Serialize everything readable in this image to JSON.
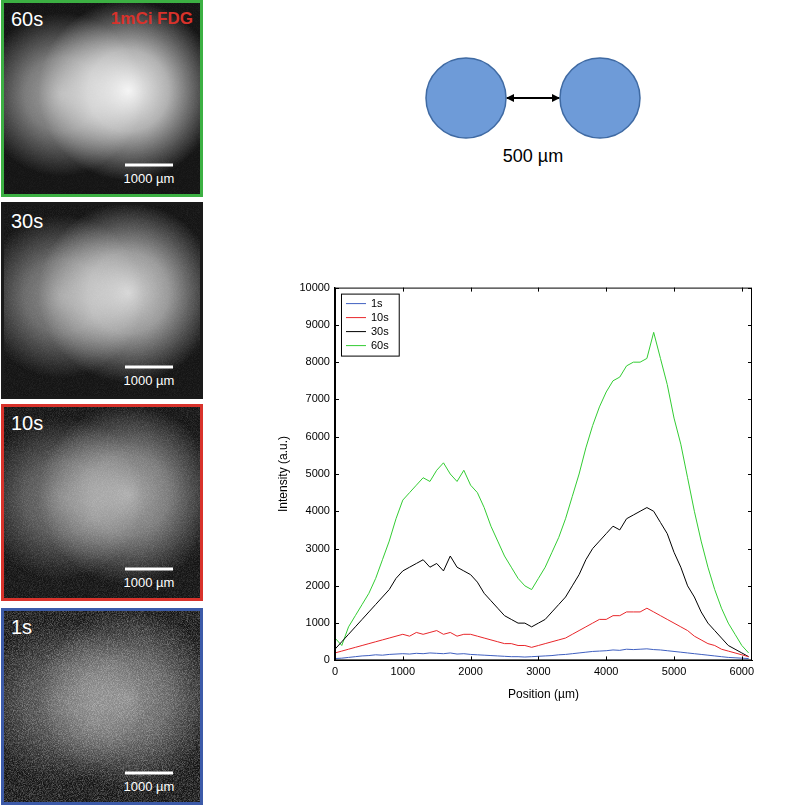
{
  "images": [
    {
      "label": "60s",
      "annotation": "1mCi FDG",
      "scale_bar": "1000 µm",
      "color": "#3cb043"
    },
    {
      "label": "30s",
      "scale_bar": "1000 µm",
      "color": "#1a1a1a"
    },
    {
      "label": "10s",
      "scale_bar": "1000 µm",
      "color": "#d8322b"
    },
    {
      "label": "1s",
      "scale_bar": "1000 µm",
      "color": "#3c5aa8"
    }
  ],
  "diagram": {
    "label": "500 µm"
  },
  "chart_data": {
    "type": "line",
    "x_label": "Position (µm)",
    "y_label": "Intensity (a.u.)",
    "x": [
      0,
      100,
      200,
      300,
      400,
      500,
      600,
      700,
      800,
      900,
      1000,
      1100,
      1200,
      1300,
      1400,
      1500,
      1600,
      1700,
      1800,
      1900,
      2000,
      2100,
      2200,
      2300,
      2400,
      2500,
      2600,
      2700,
      2800,
      2900,
      3000,
      3100,
      3200,
      3300,
      3400,
      3500,
      3600,
      3700,
      3800,
      3900,
      4000,
      4100,
      4200,
      4300,
      4400,
      4500,
      4600,
      4700,
      4800,
      4900,
      5000,
      5100,
      5200,
      5300,
      5400,
      5500,
      5600,
      5700,
      5800,
      5900,
      6000,
      6100
    ],
    "series": [
      {
        "name": "1s",
        "color": "#4060c0",
        "values": [
          50,
          60,
          80,
          100,
          120,
          130,
          150,
          140,
          160,
          170,
          180,
          170,
          190,
          180,
          200,
          190,
          180,
          200,
          170,
          180,
          160,
          150,
          140,
          130,
          120,
          110,
          100,
          100,
          90,
          100,
          110,
          120,
          130,
          150,
          160,
          180,
          200,
          220,
          240,
          250,
          260,
          280,
          270,
          300,
          290,
          300,
          310,
          290,
          280,
          260,
          240,
          220,
          200,
          180,
          160,
          140,
          120,
          100,
          80,
          70,
          60,
          50
        ]
      },
      {
        "name": "10s",
        "color": "#e8262a",
        "values": [
          200,
          250,
          300,
          350,
          400,
          450,
          500,
          550,
          600,
          650,
          700,
          650,
          750,
          700,
          750,
          800,
          700,
          750,
          650,
          700,
          700,
          650,
          600,
          550,
          500,
          450,
          450,
          400,
          400,
          350,
          400,
          450,
          500,
          550,
          600,
          700,
          800,
          900,
          1000,
          1100,
          1100,
          1200,
          1200,
          1300,
          1300,
          1300,
          1400,
          1300,
          1200,
          1100,
          1000,
          900,
          800,
          650,
          550,
          450,
          400,
          300,
          250,
          200,
          150,
          100
        ]
      },
      {
        "name": "30s",
        "color": "#000000",
        "values": [
          300,
          500,
          700,
          900,
          1100,
          1300,
          1500,
          1700,
          1900,
          2200,
          2400,
          2500,
          2600,
          2700,
          2500,
          2600,
          2400,
          2800,
          2500,
          2400,
          2300,
          2100,
          1800,
          1600,
          1400,
          1200,
          1100,
          1000,
          1000,
          900,
          1000,
          1100,
          1300,
          1500,
          1700,
          2000,
          2300,
          2700,
          3000,
          3200,
          3400,
          3600,
          3500,
          3800,
          3900,
          4000,
          4100,
          4000,
          3700,
          3400,
          2900,
          2500,
          2000,
          1700,
          1300,
          1000,
          800,
          600,
          400,
          300,
          200,
          100
        ]
      },
      {
        "name": "60s",
        "color": "#33cc33",
        "values": [
          600,
          400,
          900,
          1200,
          1500,
          1800,
          2200,
          2700,
          3200,
          3800,
          4300,
          4500,
          4700,
          4900,
          4800,
          5100,
          5300,
          5000,
          4800,
          5100,
          4700,
          4500,
          4100,
          3600,
          3200,
          2800,
          2500,
          2200,
          2000,
          1900,
          2200,
          2500,
          2900,
          3300,
          3800,
          4400,
          5000,
          5700,
          6300,
          6800,
          7200,
          7500,
          7600,
          7900,
          8000,
          8000,
          8100,
          8800,
          8100,
          7400,
          6500,
          5800,
          4900,
          4000,
          3200,
          2500,
          1900,
          1400,
          1000,
          700,
          400,
          200
        ]
      }
    ],
    "xlim": [
      0,
      6150
    ],
    "xticks": [
      0,
      1000,
      2000,
      3000,
      4000,
      5000,
      6000
    ],
    "ylim": [
      0,
      10000
    ],
    "yticks": [
      0,
      1000,
      2000,
      3000,
      4000,
      5000,
      6000,
      7000,
      8000,
      9000,
      10000
    ],
    "grid": false,
    "legend": "upper left"
  }
}
